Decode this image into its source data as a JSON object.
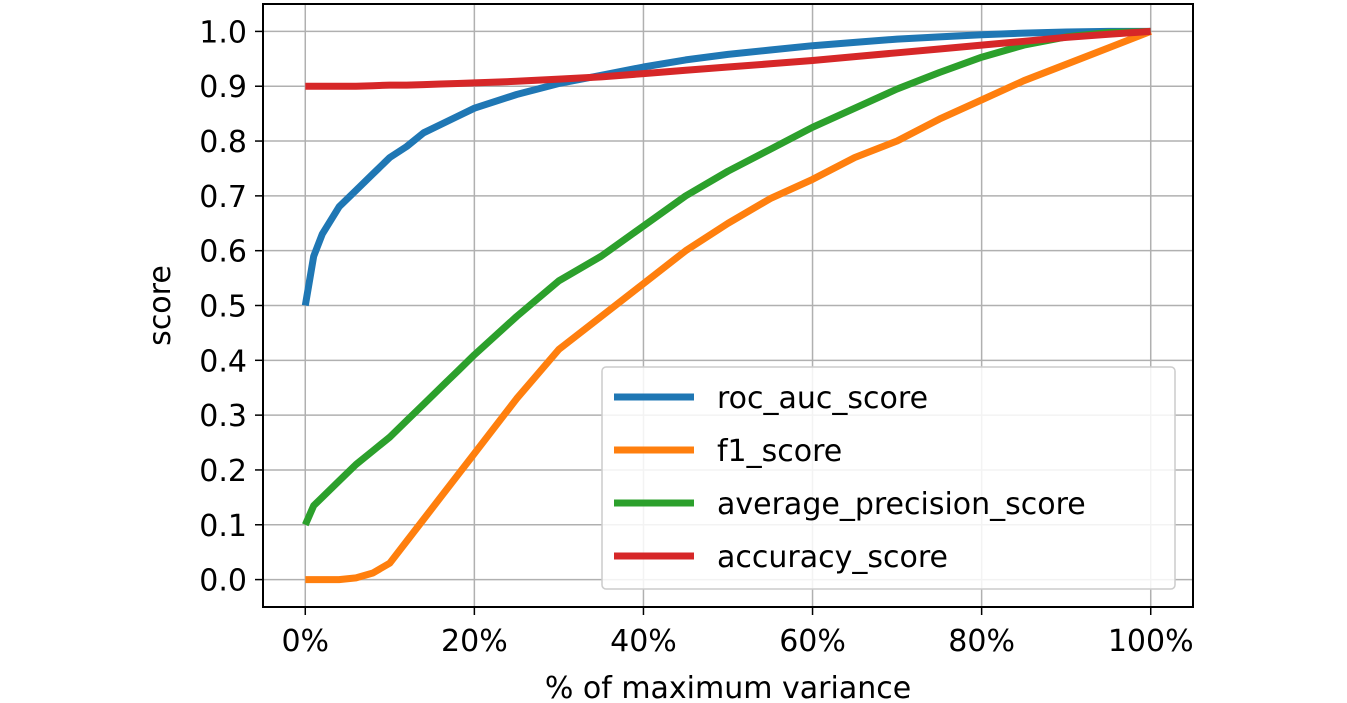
{
  "chart_data": {
    "type": "line",
    "title": "",
    "xlabel": "% of maximum variance",
    "ylabel": "score",
    "xlim": [
      -5,
      105
    ],
    "ylim": [
      -0.05,
      1.05
    ],
    "x_ticks": [
      0,
      20,
      40,
      60,
      80,
      100
    ],
    "x_tick_labels": [
      "0%",
      "20%",
      "40%",
      "60%",
      "80%",
      "100%"
    ],
    "y_ticks": [
      0.0,
      0.1,
      0.2,
      0.3,
      0.4,
      0.5,
      0.6,
      0.7,
      0.8,
      0.9,
      1.0
    ],
    "y_tick_labels": [
      "0.0",
      "0.1",
      "0.2",
      "0.3",
      "0.4",
      "0.5",
      "0.6",
      "0.7",
      "0.8",
      "0.9",
      "1.0"
    ],
    "grid": true,
    "legend_position": "lower-right",
    "x": [
      0,
      1,
      2,
      4,
      6,
      8,
      10,
      12,
      14,
      16,
      18,
      20,
      25,
      30,
      35,
      40,
      45,
      50,
      55,
      60,
      65,
      70,
      75,
      80,
      85,
      90,
      95,
      100
    ],
    "series": [
      {
        "name": "roc_auc_score",
        "color": "#1f77b4",
        "values": [
          0.5,
          0.59,
          0.63,
          0.68,
          0.71,
          0.74,
          0.77,
          0.79,
          0.815,
          0.83,
          0.845,
          0.86,
          0.885,
          0.905,
          0.92,
          0.935,
          0.948,
          0.958,
          0.966,
          0.974,
          0.98,
          0.986,
          0.99,
          0.994,
          0.997,
          0.999,
          1.0,
          1.0
        ]
      },
      {
        "name": "f1_score",
        "color": "#ff7f0e",
        "values": [
          0.0,
          0.0,
          0.0,
          0.0,
          0.003,
          0.012,
          0.03,
          0.07,
          0.11,
          0.15,
          0.19,
          0.23,
          0.33,
          0.42,
          0.48,
          0.54,
          0.6,
          0.65,
          0.695,
          0.73,
          0.77,
          0.8,
          0.84,
          0.875,
          0.91,
          0.94,
          0.97,
          1.0
        ]
      },
      {
        "name": "average_precision_score",
        "color": "#2ca02c",
        "values": [
          0.1,
          0.135,
          0.15,
          0.18,
          0.21,
          0.235,
          0.26,
          0.29,
          0.32,
          0.35,
          0.38,
          0.41,
          0.48,
          0.545,
          0.59,
          0.645,
          0.7,
          0.745,
          0.785,
          0.825,
          0.86,
          0.895,
          0.925,
          0.953,
          0.975,
          0.99,
          0.998,
          1.0
        ]
      },
      {
        "name": "accuracy_score",
        "color": "#d62728",
        "values": [
          0.9,
          0.9,
          0.9,
          0.9,
          0.9,
          0.901,
          0.902,
          0.902,
          0.903,
          0.904,
          0.905,
          0.906,
          0.909,
          0.913,
          0.917,
          0.923,
          0.929,
          0.935,
          0.941,
          0.947,
          0.954,
          0.961,
          0.968,
          0.975,
          0.982,
          0.989,
          0.995,
          1.0
        ]
      }
    ]
  }
}
